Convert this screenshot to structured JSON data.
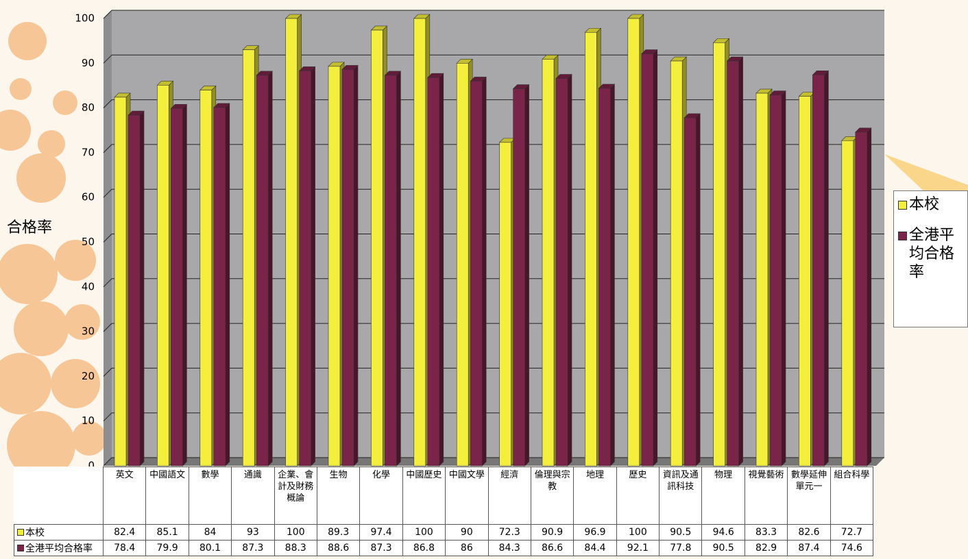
{
  "chart_data": {
    "type": "bar3d",
    "y_label": "合格率",
    "categories": [
      "英文",
      "中國語文",
      "數學",
      "通識",
      "企業、會計及財務概論",
      "生物",
      "化學",
      "中國歷史",
      "中國文學",
      "經濟",
      "倫理與宗教",
      "地理",
      "歷史",
      "資訊及通訊科技",
      "物理",
      "視覺藝術",
      "數學延伸單元一",
      "組合科學"
    ],
    "series": [
      {
        "name": "本校",
        "color": "#f4ee3c",
        "values": [
          82.4,
          85.1,
          84,
          93,
          100,
          89.3,
          97.4,
          100,
          90,
          72.3,
          90.9,
          96.9,
          100,
          90.5,
          94.6,
          83.3,
          82.6,
          72.7
        ]
      },
      {
        "name": "全港平均合格率",
        "color": "#7b2449",
        "values": [
          78.4,
          79.9,
          80.1,
          87.3,
          88.3,
          88.6,
          87.3,
          86.8,
          86,
          84.3,
          86.6,
          84.4,
          92.1,
          77.8,
          90.5,
          82.9,
          87.4,
          74.6
        ]
      }
    ],
    "ylim": [
      0,
      100
    ],
    "yticks": [
      0,
      10,
      20,
      30,
      40,
      50,
      60,
      70,
      80,
      90,
      100
    ],
    "grid": true,
    "legend": "right"
  }
}
